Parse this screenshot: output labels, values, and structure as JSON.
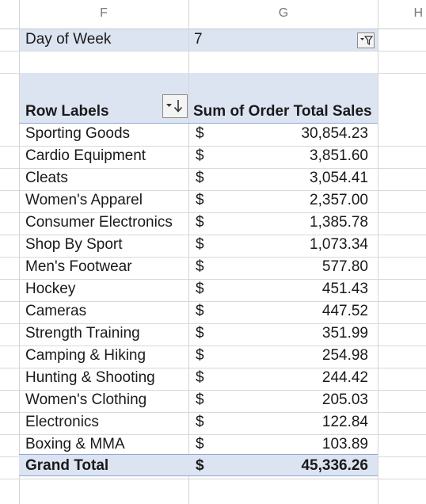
{
  "columns": {
    "f": "F",
    "g": "G",
    "h": "H"
  },
  "filter": {
    "label": "Day of Week",
    "value": "7"
  },
  "pivot": {
    "row_header": "Row Labels",
    "value_header": "Sum of Order Total Sales",
    "currency": "$",
    "rows": [
      {
        "label": "Sporting Goods",
        "currency": "$",
        "value": "30,854.23"
      },
      {
        "label": "Cardio Equipment",
        "currency": "$",
        "value": "3,851.60"
      },
      {
        "label": "Cleats",
        "currency": "$",
        "value": "3,054.41"
      },
      {
        "label": "Women's Apparel",
        "currency": "$",
        "value": "2,357.00"
      },
      {
        "label": "Consumer Electronics",
        "currency": "$",
        "value": "1,385.78"
      },
      {
        "label": "Shop By Sport",
        "currency": "$",
        "value": "1,073.34"
      },
      {
        "label": "Men's Footwear",
        "currency": "$",
        "value": "577.80"
      },
      {
        "label": "Hockey",
        "currency": "$",
        "value": "451.43"
      },
      {
        "label": "Cameras",
        "currency": "$",
        "value": "447.52"
      },
      {
        "label": "Strength Training",
        "currency": "$",
        "value": "351.99"
      },
      {
        "label": "Camping & Hiking",
        "currency": "$",
        "value": "254.98"
      },
      {
        "label": "Hunting & Shooting",
        "currency": "$",
        "value": "244.42"
      },
      {
        "label": "Women's Clothing",
        "currency": "$",
        "value": "205.03"
      },
      {
        "label": "Electronics",
        "currency": "$",
        "value": "122.84"
      },
      {
        "label": "Boxing & MMA",
        "currency": "$",
        "value": "103.89"
      }
    ],
    "grand_total": {
      "label": "Grand Total",
      "currency": "$",
      "value": "45,336.26"
    }
  },
  "colors": {
    "pivot_header_fill": "#dde4f1",
    "grid": "#d9d9d9",
    "accent_line": "#8ea9db"
  },
  "icons": {
    "filter": "filter-dropdown-icon",
    "sort": "sort-dropdown-icon"
  }
}
